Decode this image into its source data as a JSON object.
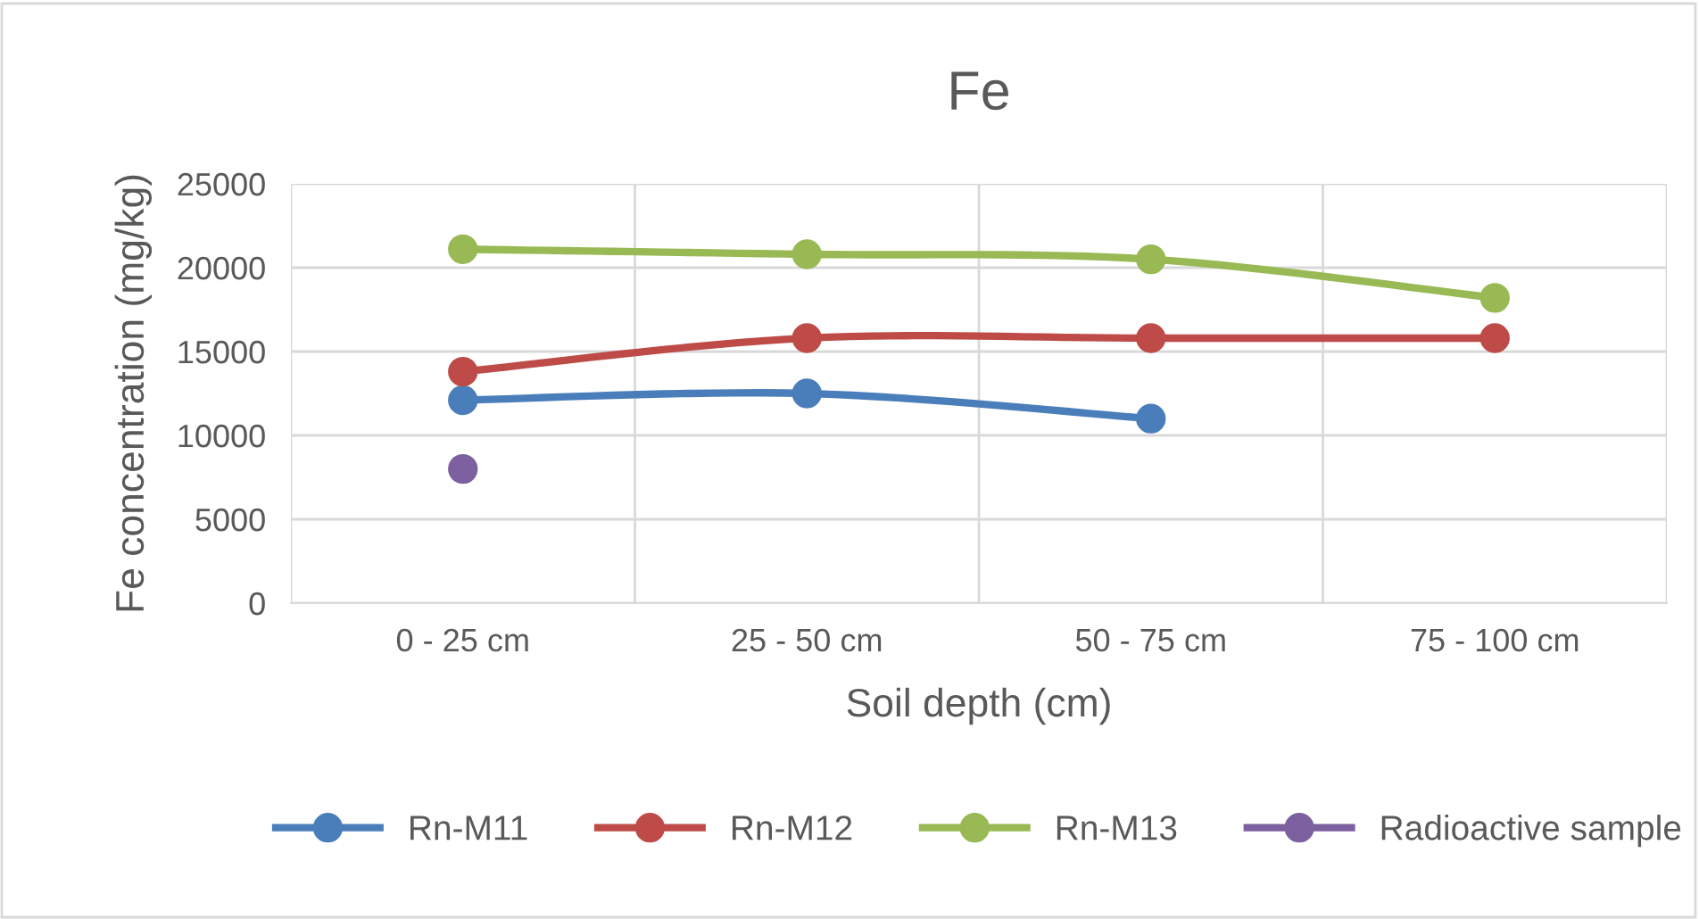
{
  "chart_data": {
    "type": "line",
    "title": "Fe",
    "xlabel": "Soil depth (cm)",
    "ylabel": "Fe concentration (mg/kg)",
    "categories": [
      "0 - 25 cm",
      "25 - 50 cm",
      "50 - 75 cm",
      "75 - 100 cm"
    ],
    "series": [
      {
        "name": "Rn-M11",
        "color": "#4a7ebb",
        "values": [
          12100,
          12500,
          11000,
          null
        ]
      },
      {
        "name": "Rn-M12",
        "color": "#be4b48",
        "values": [
          13800,
          15800,
          15800,
          15800
        ]
      },
      {
        "name": "Rn-M13",
        "color": "#98b954",
        "values": [
          21100,
          20800,
          20500,
          18200
        ]
      },
      {
        "name": "Radioactive sample",
        "color": "#7d60a0",
        "values": [
          8000,
          null,
          null,
          null
        ]
      }
    ],
    "ylim": [
      0,
      25000
    ],
    "yticks": [
      0,
      5000,
      10000,
      15000,
      20000,
      25000
    ],
    "grid": true,
    "legend": "bottom",
    "marker": "circle",
    "line_style": "solid"
  }
}
